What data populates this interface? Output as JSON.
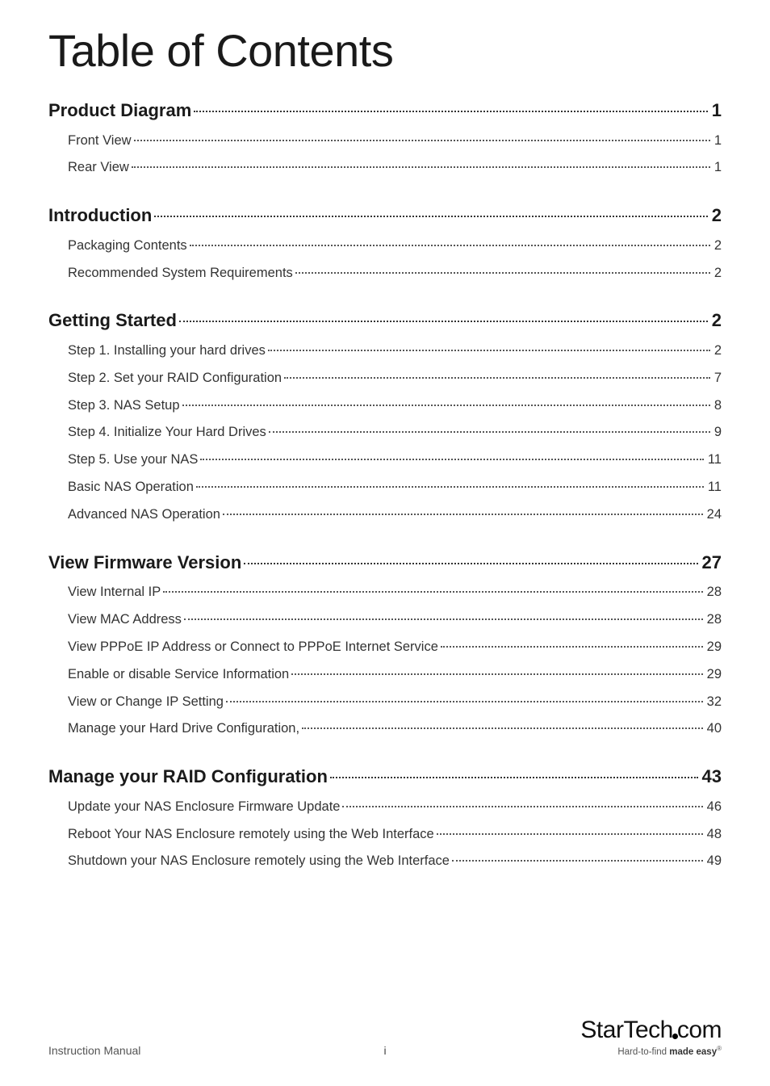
{
  "title": "Table of Contents",
  "sections": [
    {
      "label": "Product Diagram",
      "page": "1",
      "subs": [
        {
          "label": "Front View",
          "page": "1"
        },
        {
          "label": "Rear View",
          "page": "1"
        }
      ]
    },
    {
      "label": "Introduction",
      "page": "2",
      "subs": [
        {
          "label": "Packaging Contents",
          "page": "2"
        },
        {
          "label": "Recommended System Requirements",
          "page": "2"
        }
      ]
    },
    {
      "label": "Getting Started",
      "page": "2",
      "subs": [
        {
          "label": "Step 1. Installing your hard drives",
          "page": "2"
        },
        {
          "label": "Step 2. Set your RAID Configuration",
          "page": "7"
        },
        {
          "label": "Step 3. NAS Setup",
          "page": "8"
        },
        {
          "label": "Step 4. Initialize Your Hard Drives",
          "page": "9"
        },
        {
          "label": "Step 5. Use your NAS",
          "page": "11"
        },
        {
          "label": "Basic NAS Operation",
          "page": "11"
        },
        {
          "label": "Advanced NAS Operation",
          "page": "24"
        }
      ]
    },
    {
      "label": "View Firmware Version",
      "page": "27",
      "subs": [
        {
          "label": "View Internal IP",
          "page": "28"
        },
        {
          "label": "View MAC Address",
          "page": "28"
        },
        {
          "label": "View PPPoE IP Address or Connect to PPPoE Internet Service",
          "page": "29"
        },
        {
          "label": "Enable or disable Service Information",
          "page": "29"
        },
        {
          "label": "View or Change IP Setting",
          "page": "32"
        },
        {
          "label": "Manage your Hard Drive Configuration,",
          "page": "40"
        }
      ]
    },
    {
      "label": "Manage your RAID Configuration",
      "page": "43",
      "subs": [
        {
          "label": "Update your NAS Enclosure Firmware Update",
          "page": "46"
        },
        {
          "label": "Reboot Your NAS Enclosure remotely using the Web Interface",
          "page": "48"
        },
        {
          "label": "Shutdown your NAS Enclosure remotely using the Web Interface",
          "page": "49"
        }
      ]
    }
  ],
  "footer": {
    "left": "Instruction Manual",
    "pagenum": "i",
    "logo_main_a": "StarTech",
    "logo_main_b": "com",
    "logo_tag_a": "Hard-to-find ",
    "logo_tag_b": "made easy",
    "logo_reg": "®"
  },
  "colors": {
    "background": "#ffffff",
    "title": "#1a1a1a",
    "section": "#1a1a1a",
    "sub": "#333333",
    "leader": "#555555",
    "footer_text": "#555555"
  }
}
